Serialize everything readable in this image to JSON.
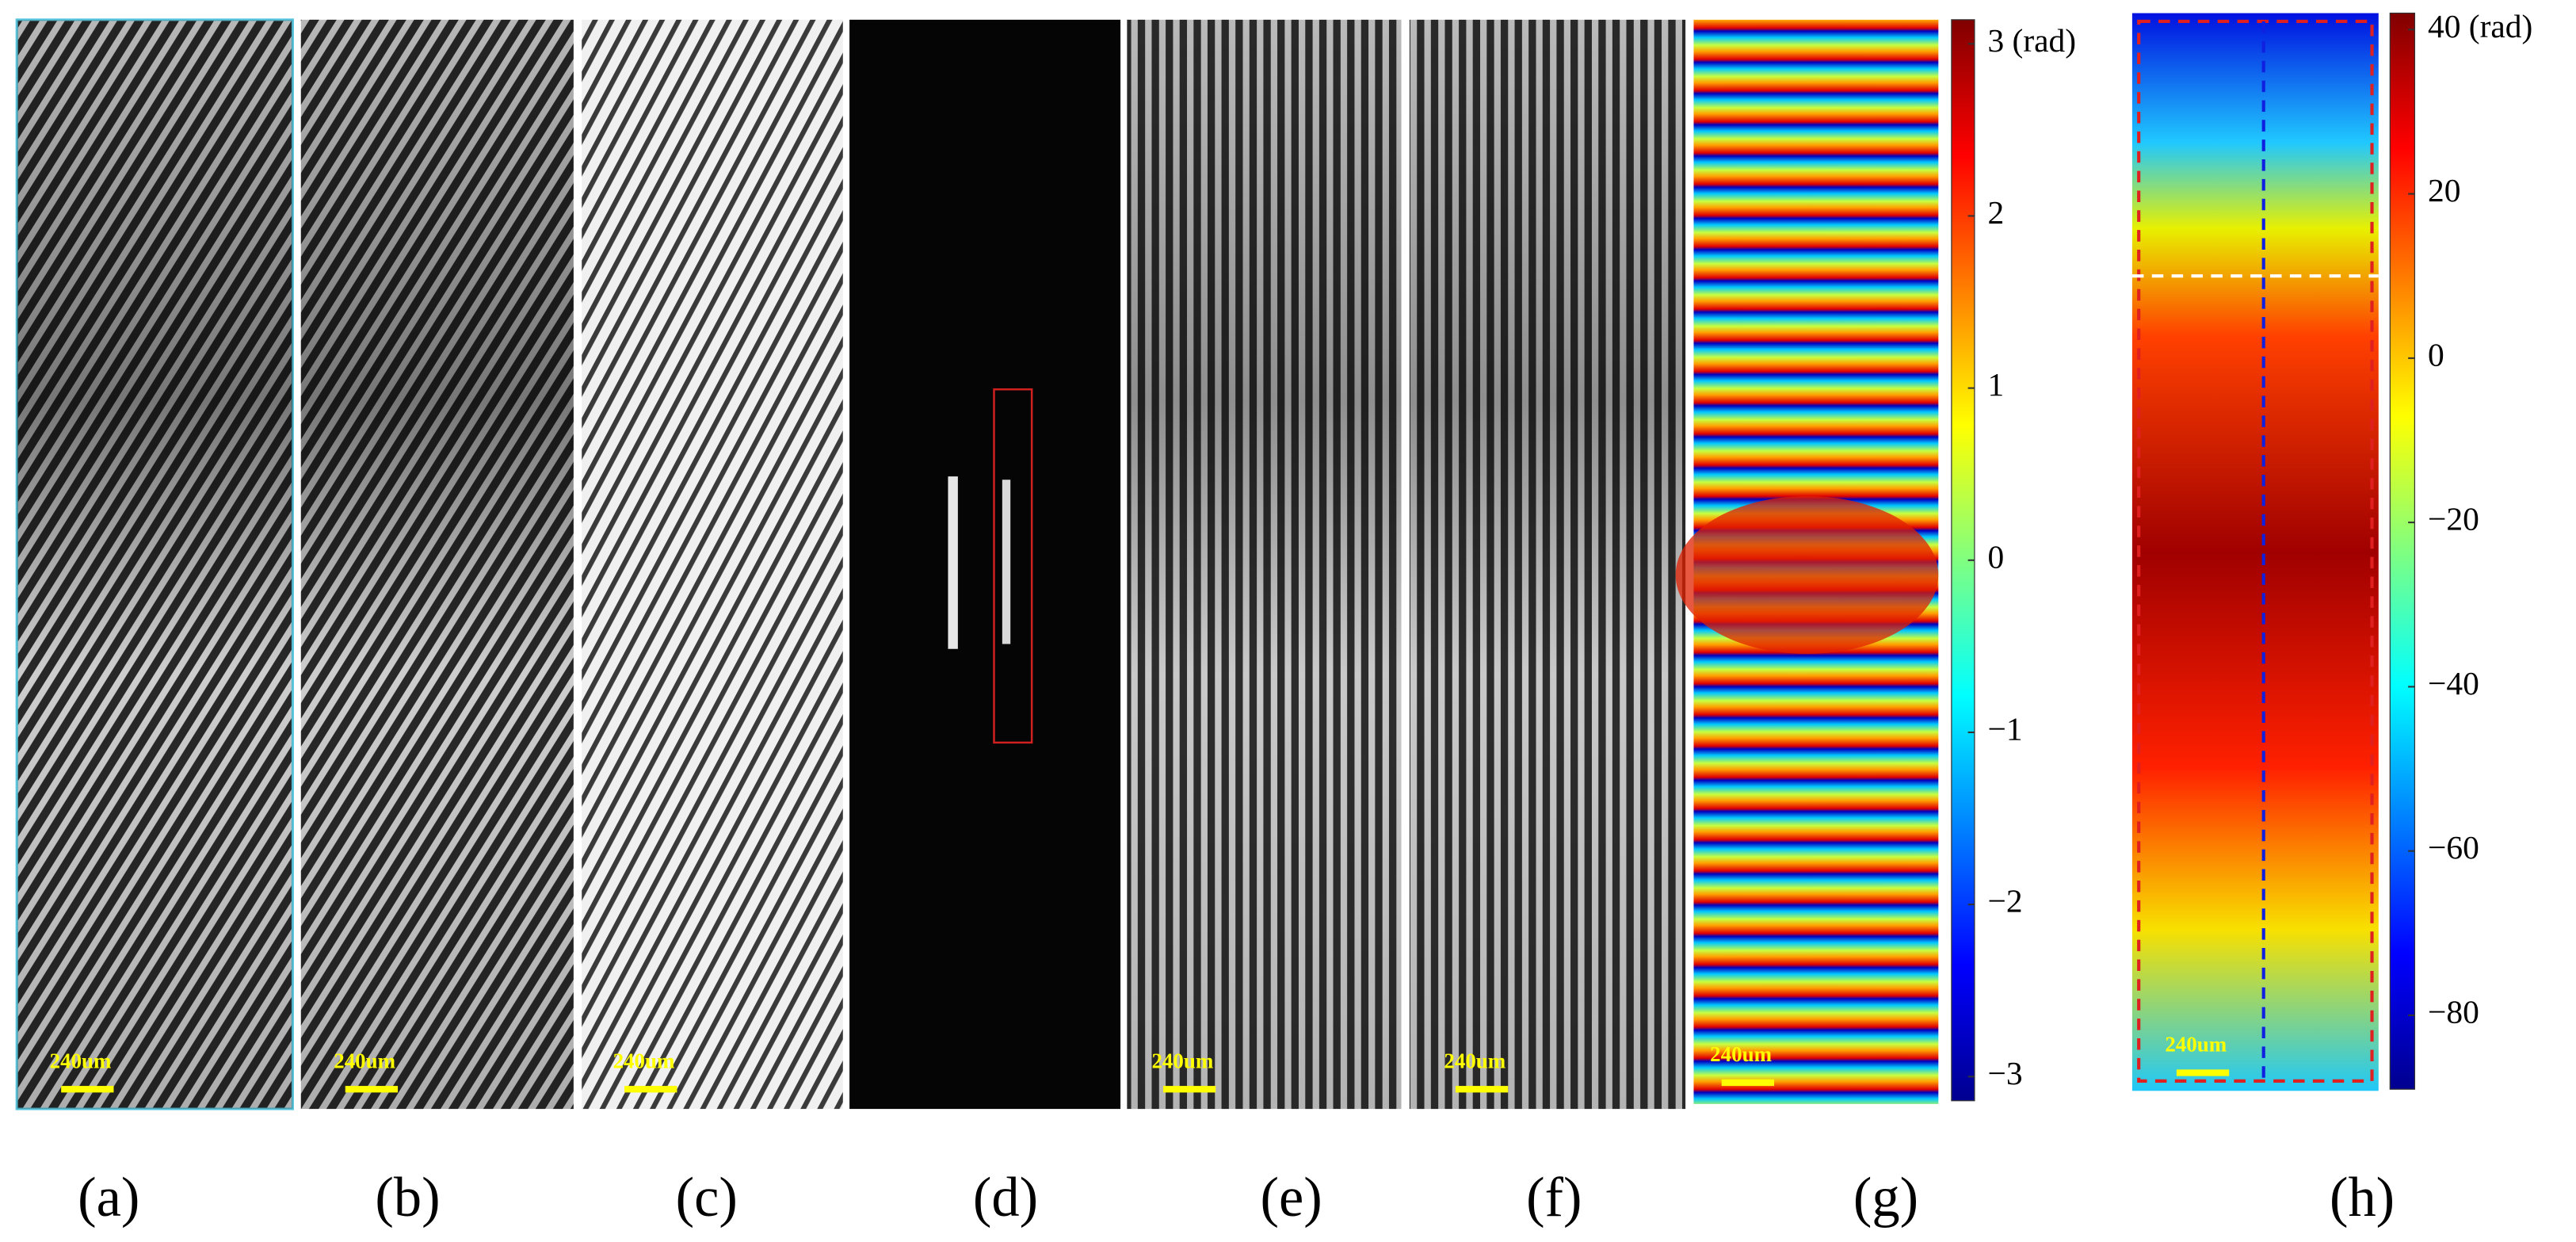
{
  "panels": [
    {
      "label": "(a)",
      "scale_bar": "240um"
    },
    {
      "label": "(b)",
      "scale_bar": "240um"
    },
    {
      "label": "(c)",
      "scale_bar": "240um"
    },
    {
      "label": "(d)",
      "scale_bar": null
    },
    {
      "label": "(e)",
      "scale_bar": "240um"
    },
    {
      "label": "(f)",
      "scale_bar": "240um"
    },
    {
      "label": "(g)",
      "scale_bar": "240um"
    },
    {
      "label": "(h)",
      "scale_bar": "240um"
    }
  ],
  "colorbars": [
    {
      "lim": [
        -3.14,
        3.14
      ],
      "ticks": [
        {
          "value": 3,
          "label": "3 (rad)"
        },
        2,
        1,
        0,
        {
          "value": -1,
          "label": "−1"
        },
        {
          "value": -2,
          "label": "−2"
        },
        {
          "value": -3,
          "label": "−3"
        }
      ]
    },
    {
      "lim": [
        -89,
        42
      ],
      "ticks": [
        {
          "value": 40,
          "label": "40 (rad)"
        },
        20,
        0,
        {
          "value": -20,
          "label": "−20"
        },
        {
          "value": -40,
          "label": "−40"
        },
        {
          "value": -60,
          "label": "−60"
        },
        {
          "value": -80,
          "label": "−80"
        }
      ]
    }
  ]
}
